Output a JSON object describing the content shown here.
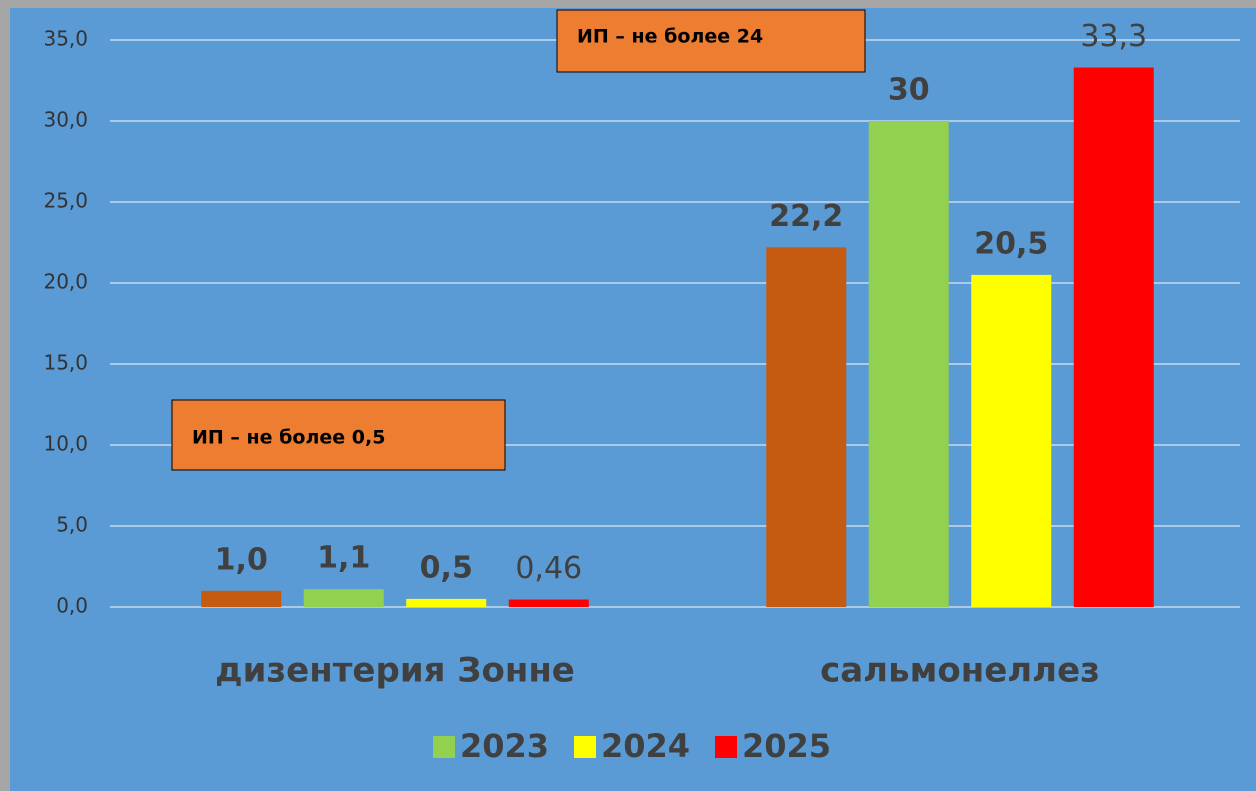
{
  "chart_data": {
    "type": "bar",
    "categories": [
      "дизентерия Зонне",
      "сальмонеллез"
    ],
    "series": [
      {
        "color": "#c55a11",
        "values": [
          1.0,
          22.2
        ],
        "value_labels": [
          "1,0",
          "22,2"
        ]
      },
      {
        "name": "2023",
        "color": "#92d050",
        "values": [
          1.1,
          30
        ],
        "value_labels": [
          "1,1",
          "30"
        ]
      },
      {
        "name": "2024",
        "color": "#ffff00",
        "values": [
          0.5,
          20.5
        ],
        "value_labels": [
          "0,5",
          "20,5"
        ]
      },
      {
        "name": "2025",
        "color": "#ff0000",
        "values": [
          0.46,
          33.3
        ],
        "value_labels": [
          "0,46",
          "33,3"
        ]
      }
    ],
    "ylim": [
      0,
      35
    ],
    "yticks": [
      {
        "value": 0,
        "label": "0,0"
      },
      {
        "value": 5,
        "label": "5,0"
      },
      {
        "value": 10,
        "label": "10,0"
      },
      {
        "value": 15,
        "label": "15,0"
      },
      {
        "value": 20,
        "label": "20,0"
      },
      {
        "value": 25,
        "label": "25,0"
      },
      {
        "value": 30,
        "label": "30,0"
      },
      {
        "value": 35,
        "label": "35,0"
      }
    ],
    "grid": true,
    "legend": "bottom",
    "annotations": [
      "ИП – не более 24",
      "ИП – не более 0,5"
    ]
  }
}
